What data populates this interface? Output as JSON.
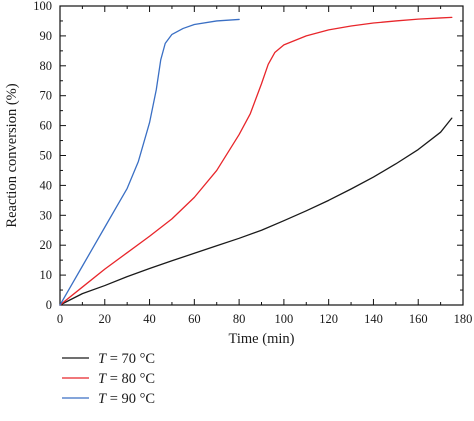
{
  "chart_data": {
    "type": "line",
    "xlabel": "Time (min)",
    "ylabel": "Reaction conversion (%)",
    "xlim": [
      0,
      180
    ],
    "ylim": [
      0,
      100
    ],
    "x_ticks": [
      0,
      20,
      40,
      60,
      80,
      100,
      120,
      140,
      160,
      180
    ],
    "y_ticks": [
      0,
      10,
      20,
      30,
      40,
      50,
      60,
      70,
      80,
      90,
      100
    ],
    "grid": false,
    "legend_position": "bottom-left, below plot",
    "series": [
      {
        "name_prefix": "T",
        "name_rest": " = 70 °C",
        "color": "#1a1a1a",
        "x": [
          0,
          10,
          20,
          30,
          40,
          50,
          60,
          70,
          80,
          90,
          100,
          110,
          120,
          130,
          140,
          150,
          160,
          170,
          175
        ],
        "y": [
          0,
          3.8,
          6.5,
          9.5,
          12.2,
          14.8,
          17.3,
          19.8,
          22.3,
          25.0,
          28.2,
          31.5,
          35.0,
          38.8,
          42.8,
          47.2,
          52.0,
          57.8,
          62.5
        ]
      },
      {
        "name_prefix": "T",
        "name_rest": " = 80 °C",
        "color": "#e8262b",
        "x": [
          0,
          10,
          20,
          30,
          40,
          50,
          60,
          70,
          80,
          85,
          90,
          93,
          96,
          100,
          110,
          120,
          130,
          140,
          150,
          160,
          170,
          175
        ],
        "y": [
          0,
          6.0,
          12.0,
          17.5,
          23.0,
          28.8,
          36.0,
          45.0,
          57.0,
          64.0,
          74.0,
          80.5,
          84.5,
          87.0,
          90.0,
          92.0,
          93.3,
          94.3,
          95.0,
          95.6,
          96.0,
          96.2
        ]
      },
      {
        "name_prefix": "T",
        "name_rest": " = 90 °C",
        "color": "#3a6fc4",
        "x": [
          0,
          5,
          10,
          15,
          20,
          25,
          30,
          35,
          40,
          43,
          45,
          47,
          50,
          55,
          60,
          70,
          80
        ],
        "y": [
          0,
          6.5,
          13.0,
          19.5,
          26.0,
          32.5,
          39.0,
          48.0,
          61.0,
          72.0,
          82.0,
          87.5,
          90.5,
          92.5,
          93.8,
          95.0,
          95.5
        ]
      }
    ]
  }
}
